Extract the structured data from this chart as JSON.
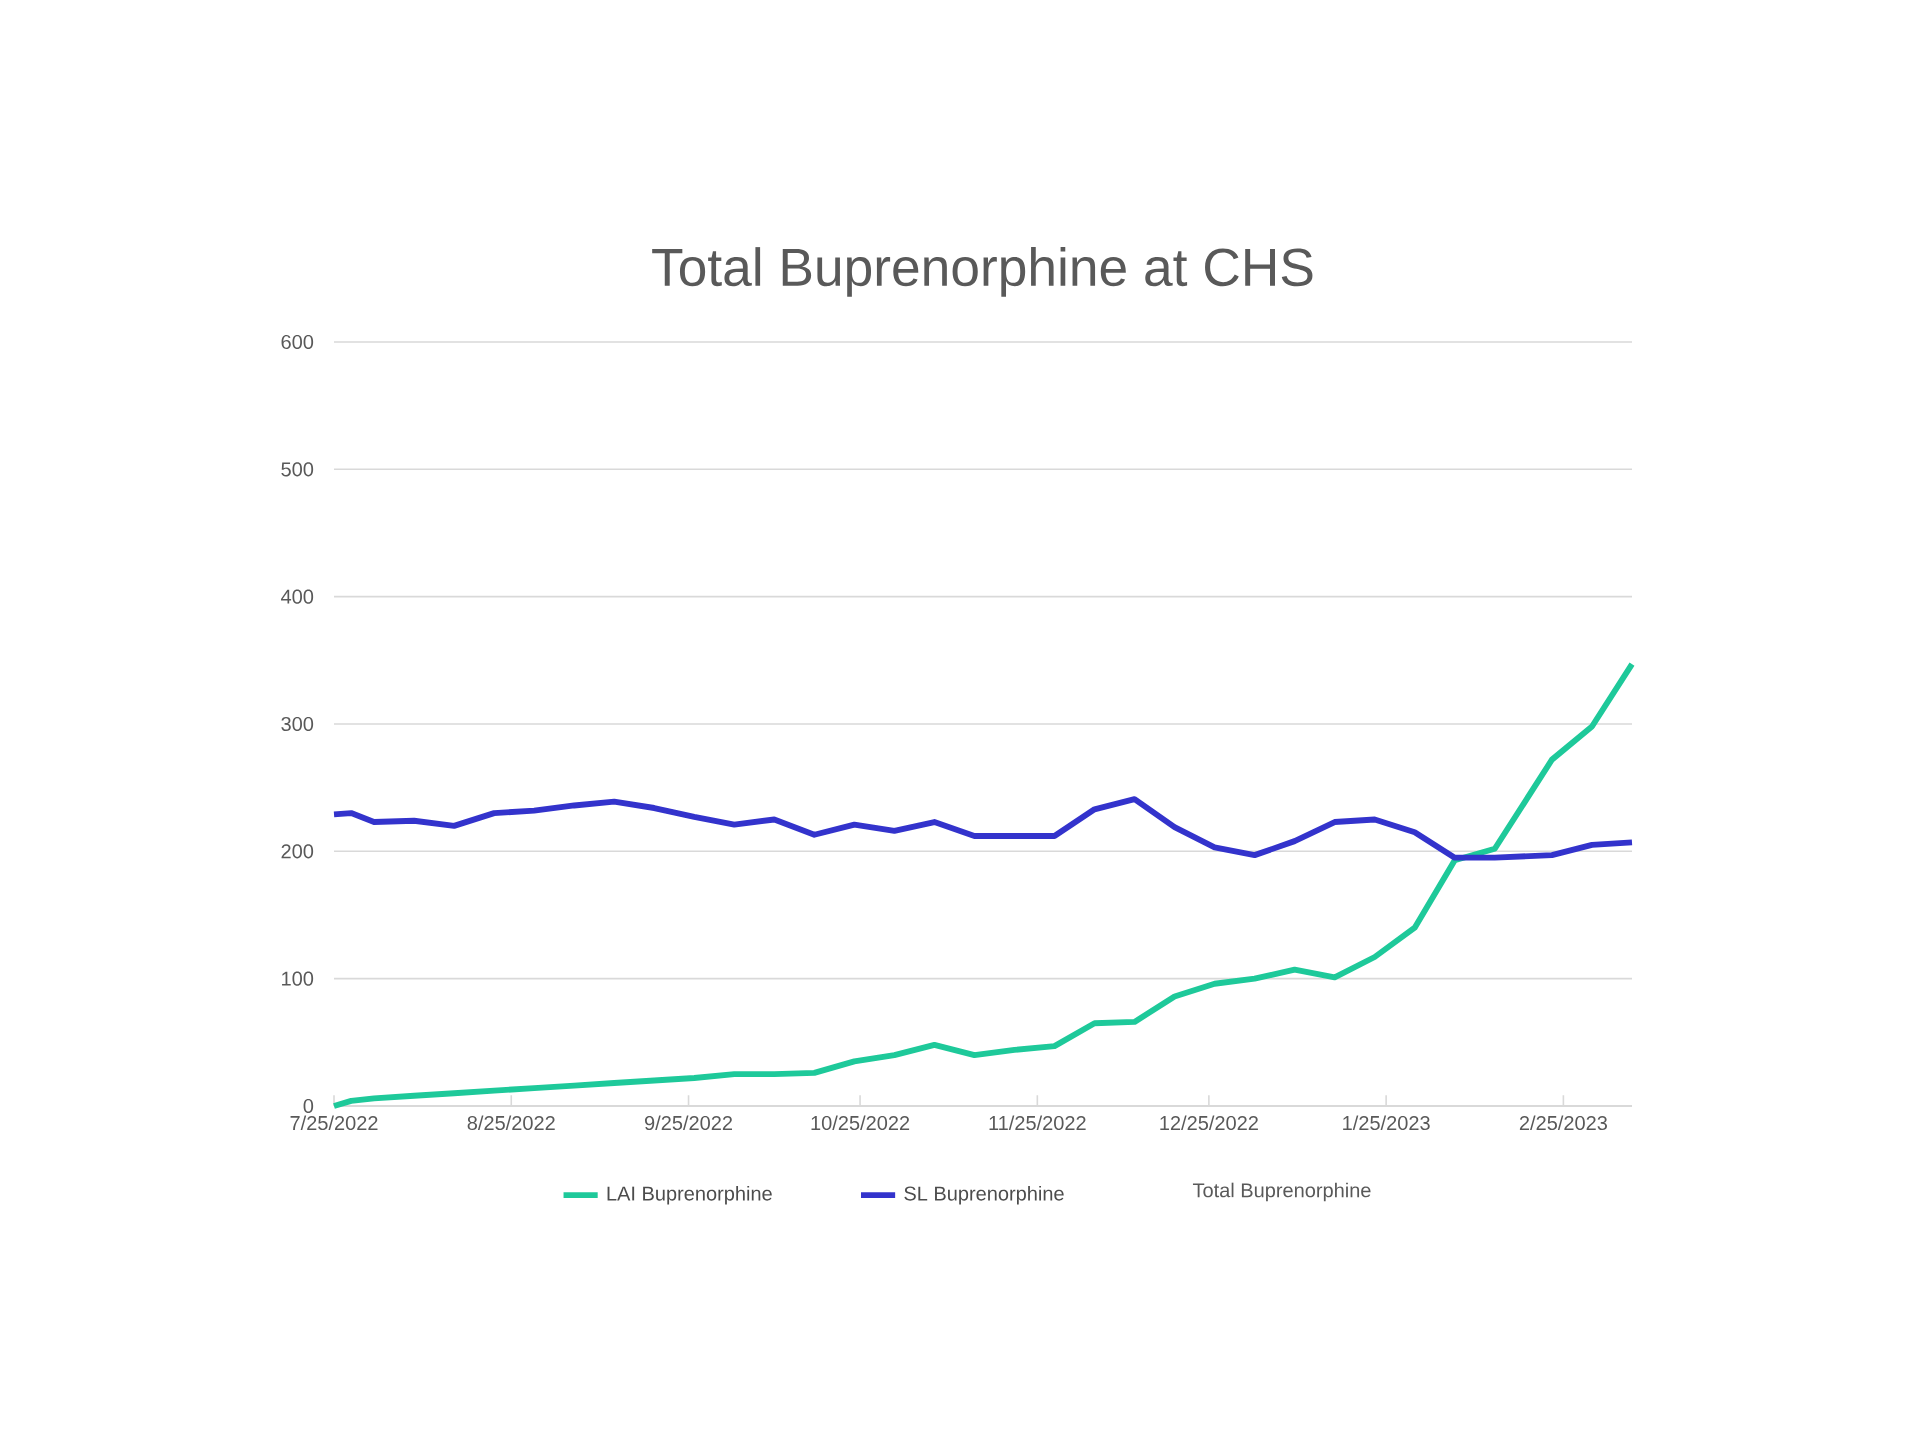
{
  "chart_data": {
    "type": "line",
    "title": "Total Buprenorphine at CHS",
    "x": [
      "2022-07-25",
      "2022-07-28",
      "2022-08-01",
      "2022-08-08",
      "2022-08-15",
      "2022-08-22",
      "2022-08-29",
      "2022-09-05",
      "2022-09-12",
      "2022-09-19",
      "2022-09-26",
      "2022-10-03",
      "2022-10-10",
      "2022-10-17",
      "2022-10-24",
      "2022-10-31",
      "2022-11-07",
      "2022-11-14",
      "2022-11-21",
      "2022-11-28",
      "2022-12-05",
      "2022-12-12",
      "2022-12-19",
      "2022-12-26",
      "2023-01-02",
      "2023-01-09",
      "2023-01-16",
      "2023-01-23",
      "2023-01-30",
      "2023-02-06",
      "2023-02-13",
      "2023-02-23",
      "2023-03-02",
      "2023-03-09"
    ],
    "series": [
      {
        "name": "LAI Buprenorphine",
        "color": "#1ec99a",
        "values": [
          0,
          4,
          6,
          8,
          10,
          12,
          14,
          16,
          18,
          20,
          22,
          25,
          25,
          26,
          35,
          40,
          48,
          40,
          44,
          47,
          65,
          66,
          86,
          96,
          100,
          107,
          101,
          117,
          140,
          193,
          202,
          272,
          298,
          347
        ]
      },
      {
        "name": "SL Buprenorphine",
        "color": "#3333cc",
        "values": [
          229,
          230,
          223,
          224,
          220,
          230,
          232,
          236,
          239,
          234,
          227,
          221,
          225,
          213,
          221,
          216,
          223,
          212,
          212,
          212,
          233,
          241,
          219,
          203,
          197,
          208,
          223,
          225,
          215,
          195,
          195,
          197,
          205,
          207
        ]
      }
    ],
    "annotations": [
      "Total Buprenorphine"
    ],
    "xlim": [
      "2022-07-25",
      "2023-03-09"
    ],
    "xticks": [
      {
        "value": "2022-07-25",
        "label": "7/25/2022"
      },
      {
        "value": "2022-08-25",
        "label": "8/25/2022"
      },
      {
        "value": "2022-09-25",
        "label": "9/25/2022"
      },
      {
        "value": "2022-10-25",
        "label": "10/25/2022"
      },
      {
        "value": "2022-11-25",
        "label": "11/25/2022"
      },
      {
        "value": "2022-12-25",
        "label": "12/25/2022"
      },
      {
        "value": "2023-01-25",
        "label": "1/25/2023"
      },
      {
        "value": "2023-02-25",
        "label": "2/25/2023"
      }
    ],
    "ylim": [
      0,
      600
    ],
    "yticks": [
      0,
      100,
      200,
      300,
      400,
      500,
      600
    ],
    "grid": "y",
    "legend": "bottom",
    "marker": "none",
    "line_style": "solid"
  }
}
